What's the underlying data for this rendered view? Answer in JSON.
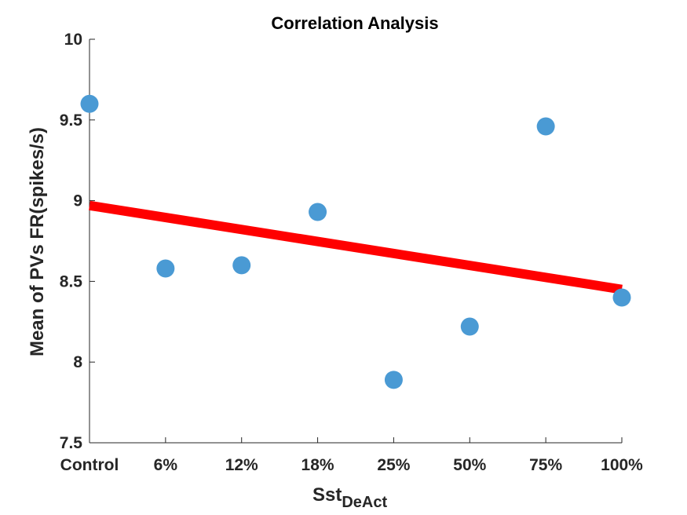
{
  "chart_data": {
    "type": "scatter",
    "title": "Correlation Analysis",
    "xlabel": {
      "main": "Sst",
      "subscript": "DeAct"
    },
    "ylabel": "Mean of PVs FR(spikes/s)",
    "categories": [
      "Control",
      "6%",
      "12%",
      "18%",
      "25%",
      "50%",
      "75%",
      "100%"
    ],
    "ylim": [
      7.5,
      10
    ],
    "yticks": [
      "7.5",
      "8",
      "8.5",
      "9",
      "9.5",
      "10"
    ],
    "grid": false,
    "points": [
      {
        "x": "Control",
        "y": 9.6
      },
      {
        "x": "6%",
        "y": 8.58
      },
      {
        "x": "12%",
        "y": 8.6
      },
      {
        "x": "18%",
        "y": 8.93
      },
      {
        "x": "25%",
        "y": 7.89
      },
      {
        "x": "50%",
        "y": 8.22
      },
      {
        "x": "75%",
        "y": 9.46
      },
      {
        "x": "100%",
        "y": 8.4
      }
    ],
    "trendline": {
      "y_start": 8.97,
      "y_end": 8.45
    },
    "colors": {
      "points": "#4a9ad4",
      "trendline": "#ff0000",
      "axis": "#262626"
    }
  }
}
